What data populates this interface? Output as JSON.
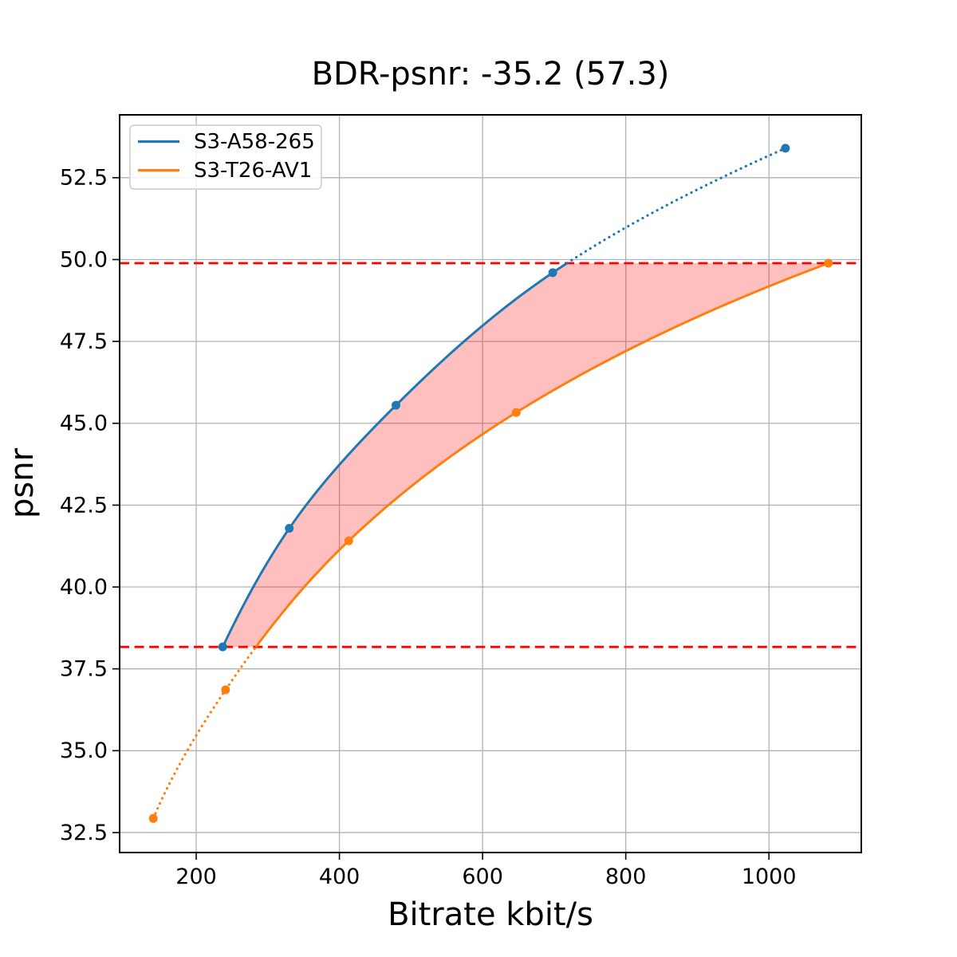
{
  "chart_data": {
    "type": "line",
    "title": "BDR-psnr: -35.2 (57.3)",
    "xlabel": "Bitrate kbit/s",
    "ylabel": "psnr",
    "xlim": [
      93,
      1129
    ],
    "ylim": [
      31.89,
      54.42
    ],
    "grid": true,
    "grid_color": "#b2b2b2",
    "background_color": "#ffffff",
    "xticks": {
      "values": [
        200,
        400,
        600,
        800,
        1000
      ],
      "labels": [
        "200",
        "400",
        "600",
        "800",
        "1000"
      ]
    },
    "yticks": {
      "values": [
        32.5,
        35.0,
        37.5,
        40.0,
        42.5,
        45.0,
        47.5,
        50.0,
        52.5
      ],
      "labels": [
        "32.5",
        "35.0",
        "37.5",
        "40.0",
        "42.5",
        "45.0",
        "47.5",
        "50.0",
        "52.5"
      ]
    },
    "legend": {
      "position": "upper left",
      "entries": [
        "S3-A58-265",
        "S3-T26-AV1"
      ]
    },
    "series": [
      {
        "name": "S3-A58-265",
        "color": "#1f77b4",
        "x": [
          237,
          330,
          479,
          698,
          1023
        ],
        "y": [
          38.17,
          41.79,
          45.55,
          49.6,
          53.4
        ],
        "style_in_range": "solid",
        "style_out_of_range": "dotted"
      },
      {
        "name": "S3-T26-AV1",
        "color": "#ff7f0e",
        "x": [
          140,
          241,
          413,
          647,
          1083
        ],
        "y": [
          32.93,
          36.86,
          41.41,
          45.33,
          49.89
        ],
        "style_in_range": "solid",
        "style_out_of_range": "dotted"
      }
    ],
    "hlines": {
      "values": [
        38.17,
        49.89
      ],
      "color": "#ff0000",
      "style": "dashed"
    },
    "fill_between": {
      "y_range": [
        38.17,
        49.89
      ],
      "color": "#ff0000",
      "alpha": 0.25
    }
  }
}
